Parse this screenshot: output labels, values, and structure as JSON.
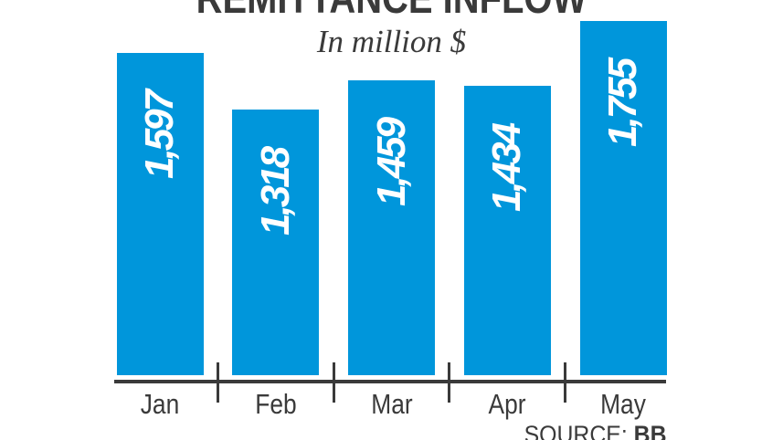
{
  "title": "REMITTANCE INFLOW",
  "subtitle": "In million $",
  "source": {
    "label": "SOURCE: ",
    "value": "BB"
  },
  "colors": {
    "bar": "#0096db",
    "axis": "#3a3a3a",
    "text": "#3a3a3a",
    "value_label": "#ffffff",
    "background": "#ffffff"
  },
  "chart_data": {
    "type": "bar",
    "title": "REMITTANCE INFLOW",
    "subtitle": "In million $",
    "unit": "million $",
    "categories": [
      "Jan",
      "Feb",
      "Mar",
      "Apr",
      "May"
    ],
    "values": [
      1597,
      1318,
      1459,
      1434,
      1755
    ],
    "value_labels": [
      "1,597",
      "1,318",
      "1,459",
      "1,434",
      "1,755"
    ],
    "ylim": [
      0,
      1800
    ],
    "grid": "off",
    "legend": "none",
    "value_label_position": "inside-top-rotated",
    "source": "BB"
  }
}
